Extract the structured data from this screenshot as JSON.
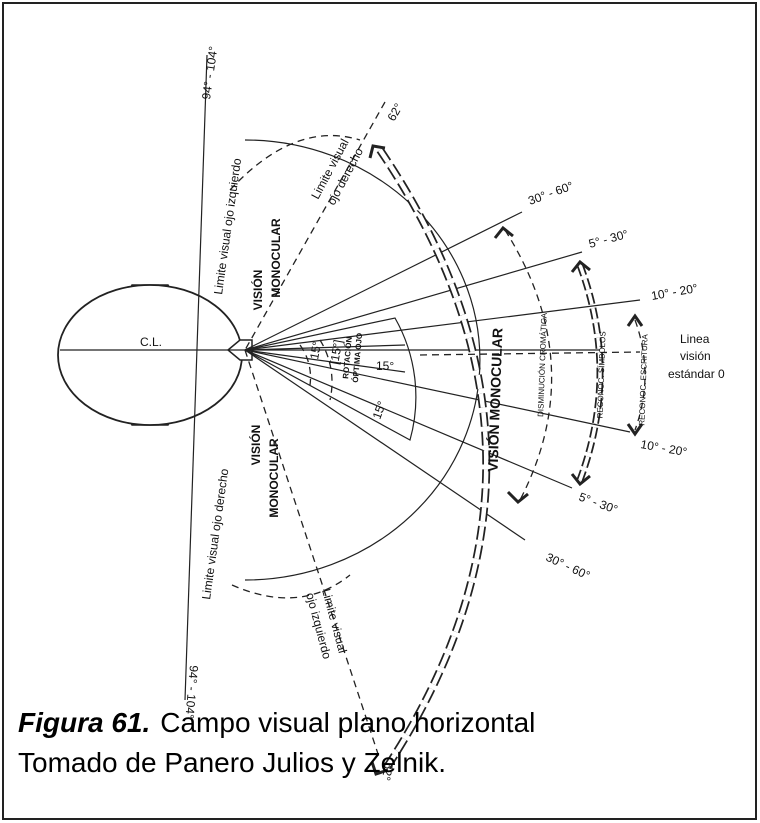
{
  "diagram": {
    "angle_left_top": "94° - 104°",
    "angle_left_bottom": "94° - 104°",
    "angle_62_top": "62°",
    "angle_62_bottom": "62°",
    "angle_30_60_top": "30° - 60°",
    "angle_30_60_bottom": "30° - 60°",
    "angle_5_30_top": "5° - 30°",
    "angle_5_30_bottom": "5° - 30°",
    "angle_10_20_top": "10° - 20°",
    "angle_10_20_bottom": "10° - 20°",
    "standard_line": [
      "Linea",
      "visión",
      "estándar 0"
    ],
    "center_line": "C.L.",
    "monocular_top": [
      "VISIÓN",
      "MONOCULAR"
    ],
    "monocular_bottom": [
      "VISIÓN",
      "MONOCULAR"
    ],
    "monocular_right": "VISIÓN MONOCULAR",
    "limit_left_eye_top": "Limite visual ojo izquierdo",
    "limit_right_eye_bottom": "Limite visual ojo derecho",
    "limit_right_eye_top": [
      "Limite visual",
      "ojo derecho"
    ],
    "limit_left_eye_bottom": [
      "Limite visual",
      "ojo izquierdo"
    ],
    "rotation": [
      "ROTACIÓN",
      "ÓPTIMA OJO"
    ],
    "rotation_angles": [
      "15°",
      "[15°]",
      "15°",
      "15°"
    ],
    "chromatic": "DISMINUCIÓN CROMÁTICA",
    "symbols": "RECONOC. SÍMBOLOS",
    "writing": "RECONOC. ESCRITURA"
  },
  "caption": {
    "figure": "Figura 61.",
    "title": "Campo visual plano horizontal",
    "source": "Tomado de Panero Julios y Zelnik."
  }
}
